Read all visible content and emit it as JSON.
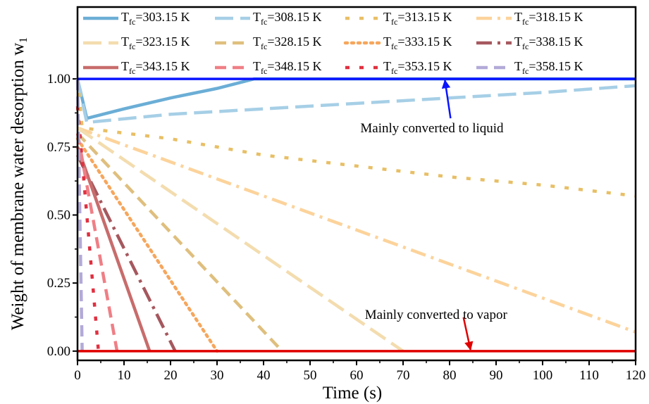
{
  "chart_data": {
    "type": "line",
    "x_label": "Time (s)",
    "y_label": "Weight of membrane water desorption w1",
    "xlim": [
      0,
      120
    ],
    "ylim": [
      -0.034,
      1.264
    ],
    "xticks": [
      0,
      10,
      20,
      30,
      40,
      50,
      60,
      70,
      80,
      90,
      100,
      110,
      120
    ],
    "yticks": [
      {
        "value": 0,
        "label": "0.00"
      },
      {
        "value": 0.25,
        "label": "0.25"
      },
      {
        "value": 0.5,
        "label": "0.50"
      },
      {
        "value": 0.75,
        "label": "0.75"
      },
      {
        "value": 1,
        "label": "1.00"
      }
    ],
    "series": [
      {
        "name": "Tfc=303.15 K",
        "color": "#6baed6",
        "linestyle": "solid",
        "x": [
          0,
          2,
          10,
          20,
          30,
          38,
          120
        ],
        "values": [
          1,
          0.855,
          0.89,
          0.93,
          0.965,
          1,
          1
        ]
      },
      {
        "name": "Tfc=308.15 K",
        "color": "#a6cfe6",
        "linestyle": "longdash",
        "x": [
          0,
          2,
          20,
          40,
          60,
          80,
          100,
          120
        ],
        "values": [
          1,
          0.84,
          0.87,
          0.89,
          0.91,
          0.93,
          0.95,
          0.975
        ]
      },
      {
        "name": "Tfc=313.15 K",
        "color": "#e8bf66",
        "linestyle": "shortdash",
        "x": [
          0,
          1,
          20,
          40,
          60,
          80,
          100,
          120
        ],
        "values": [
          1,
          0.82,
          0.78,
          0.72,
          0.68,
          0.64,
          0.61,
          0.57
        ]
      },
      {
        "name": "Tfc=318.15 K",
        "color": "#fcd39b",
        "linestyle": "dashdot",
        "x": [
          0,
          120
        ],
        "values": [
          0.82,
          0.07
        ]
      },
      {
        "name": "Tfc=323.15 K",
        "color": "#f3dcae",
        "linestyle": "longdash",
        "x": [
          0,
          70
        ],
        "values": [
          0.82,
          0
        ]
      },
      {
        "name": "Tfc=328.15 K",
        "color": "#dfbf7e",
        "linestyle": "dash",
        "x": [
          0,
          44
        ],
        "values": [
          0.8,
          0
        ]
      },
      {
        "name": "Tfc=333.15 K",
        "color": "#f6a65c",
        "linestyle": "dot",
        "x": [
          0,
          30
        ],
        "values": [
          0.78,
          0
        ]
      },
      {
        "name": "Tfc=338.15 K",
        "color": "#a5585e",
        "linestyle": "dashdot",
        "x": [
          0,
          21
        ],
        "values": [
          0.72,
          0
        ]
      },
      {
        "name": "Tfc=343.15 K",
        "color": "#c86c6c",
        "linestyle": "solid",
        "x": [
          0,
          15.5
        ],
        "values": [
          0.75,
          0
        ]
      },
      {
        "name": "Tfc=348.15 K",
        "color": "#ef7f86",
        "linestyle": "dash",
        "x": [
          0,
          8.5
        ],
        "values": [
          0.8,
          0
        ]
      },
      {
        "name": "Tfc=353.15 K",
        "color": "#e03040",
        "linestyle": "shortdash",
        "x": [
          0,
          4.5
        ],
        "values": [
          0.9,
          0
        ]
      },
      {
        "name": "Tfc=358.15 K",
        "color": "#b3aad8",
        "linestyle": "dash",
        "x": [
          0,
          1
        ],
        "values": [
          1,
          0
        ]
      }
    ],
    "reference_lines": [
      {
        "value": 1,
        "color": "#0a14ff"
      },
      {
        "value": 0,
        "color": "#e00000"
      }
    ],
    "annotations": [
      {
        "text": "Mainly converted to liquid",
        "x": 79,
        "y": 1,
        "color": "#0a14ff"
      },
      {
        "text": "Mainly converted to vapor",
        "x": 84.5,
        "y": 0,
        "color": "#e00000"
      }
    ]
  }
}
